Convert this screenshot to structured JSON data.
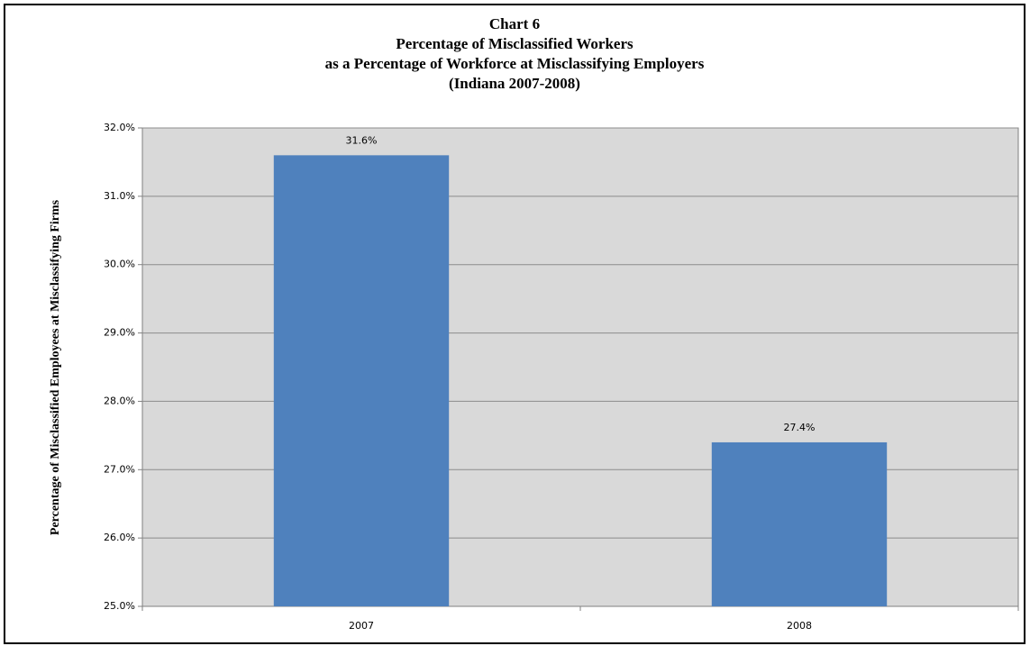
{
  "chart_data": {
    "type": "bar",
    "title": [
      "Chart 6",
      "Percentage of Misclassified Workers",
      "as a Percentage of Workforce at Misclassifying Employers",
      "(Indiana 2007-2008)"
    ],
    "y_label": "Percentage of Misclassified Employees at Misclassifying Firms",
    "categories": [
      "2007",
      "2008"
    ],
    "values": [
      31.6,
      27.4
    ],
    "value_labels": [
      "31.6%",
      "27.4%"
    ],
    "color": "#4f81bd",
    "ylim": [
      25,
      32
    ],
    "yticks": [
      {
        "value": 25,
        "label": "25.0%"
      },
      {
        "value": 26,
        "label": "26.0%"
      },
      {
        "value": 27,
        "label": "27.0%"
      },
      {
        "value": 28,
        "label": "28.0%"
      },
      {
        "value": 29,
        "label": "29.0%"
      },
      {
        "value": 30,
        "label": "30.0%"
      },
      {
        "value": 31,
        "label": "31.0%"
      },
      {
        "value": 32,
        "label": "32.0%"
      }
    ],
    "grid": true
  }
}
